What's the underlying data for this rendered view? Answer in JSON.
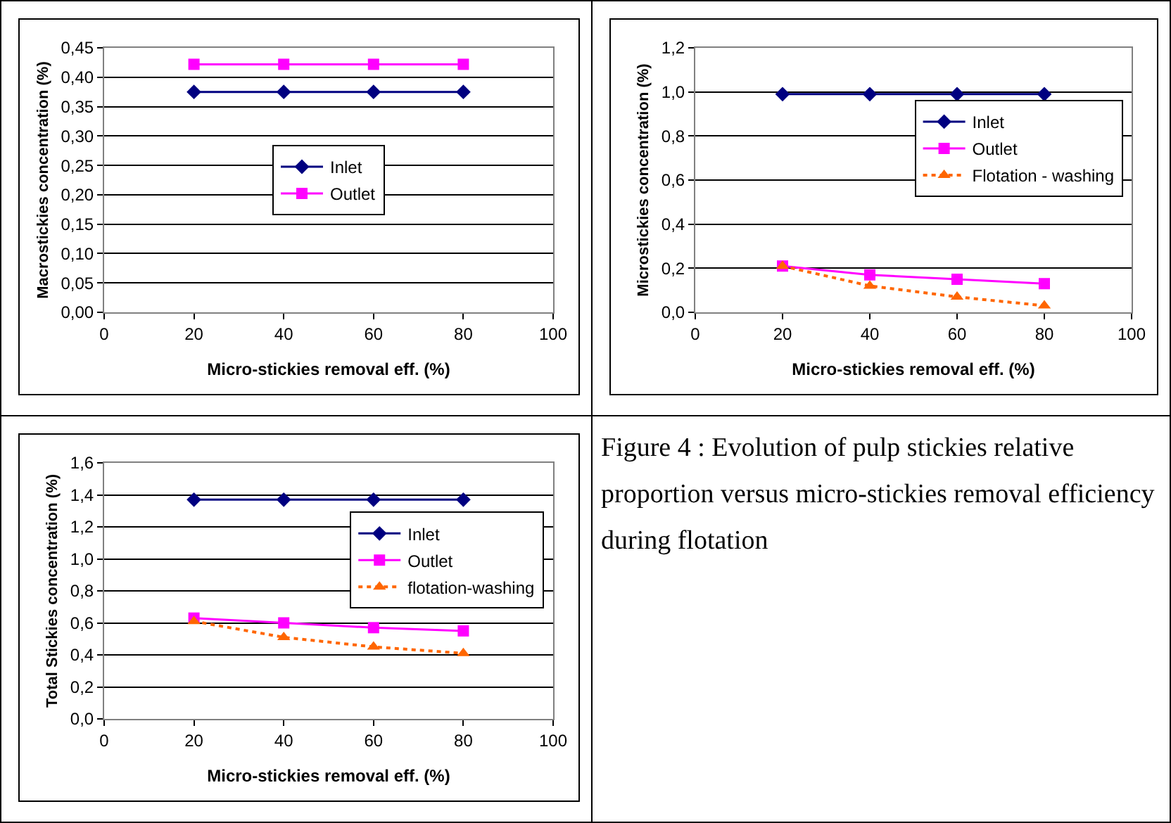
{
  "chart_data": [
    {
      "type": "line",
      "xlabel": "Micro-stickies removal eff. (%)",
      "ylabel": "Macrostickies concentration (%)",
      "x": [
        20,
        40,
        60,
        80
      ],
      "xlim": [
        0,
        100
      ],
      "xticks": [
        0,
        20,
        40,
        60,
        80,
        100
      ],
      "ylim": [
        0,
        0.45
      ],
      "yticks": [
        {
          "value": 0,
          "label": "0,00"
        },
        {
          "value": 0.05,
          "label": "0,05"
        },
        {
          "value": 0.1,
          "label": "0,10"
        },
        {
          "value": 0.15,
          "label": "0,15"
        },
        {
          "value": 0.2,
          "label": "0,20"
        },
        {
          "value": 0.25,
          "label": "0,25"
        },
        {
          "value": 0.3,
          "label": "0,30"
        },
        {
          "value": 0.35,
          "label": "0,35"
        },
        {
          "value": 0.4,
          "label": "0,40"
        },
        {
          "value": 0.45,
          "label": "0,45"
        }
      ],
      "grid": "y",
      "legend": "center",
      "series": [
        {
          "name": "Inlet",
          "color": "#000080",
          "marker": "diamond",
          "line_style": "solid",
          "values": [
            0.375,
            0.375,
            0.375,
            0.375
          ]
        },
        {
          "name": "Outlet",
          "color": "#ff00ff",
          "marker": "square",
          "line_style": "solid",
          "values": [
            0.422,
            0.422,
            0.422,
            0.422
          ]
        }
      ]
    },
    {
      "type": "line",
      "xlabel": "Micro-stickies removal eff. (%)",
      "ylabel": "Microstickies concentration (%)",
      "x": [
        20,
        40,
        60,
        80
      ],
      "xlim": [
        0,
        100
      ],
      "xticks": [
        0,
        20,
        40,
        60,
        80,
        100
      ],
      "ylim": [
        0,
        1.2
      ],
      "yticks": [
        {
          "value": 0,
          "label": "0,0"
        },
        {
          "value": 0.2,
          "label": "0,2"
        },
        {
          "value": 0.4,
          "label": "0,4"
        },
        {
          "value": 0.6,
          "label": "0,6"
        },
        {
          "value": 0.8,
          "label": "0,8"
        },
        {
          "value": 1,
          "label": "1,0"
        },
        {
          "value": 1.2,
          "label": "1,2"
        }
      ],
      "grid": "y",
      "legend": "right",
      "series": [
        {
          "name": "Inlet",
          "color": "#000080",
          "marker": "diamond",
          "line_style": "solid",
          "values": [
            0.99,
            0.99,
            0.99,
            0.99
          ]
        },
        {
          "name": "Outlet",
          "color": "#ff00ff",
          "marker": "square",
          "line_style": "solid",
          "values": [
            0.21,
            0.17,
            0.15,
            0.13
          ]
        },
        {
          "name": "Flotation - washing",
          "color": "#ff6600",
          "marker": "triangle",
          "line_style": "dotted",
          "values": [
            0.21,
            0.12,
            0.07,
            0.03
          ]
        }
      ]
    },
    {
      "type": "line",
      "xlabel": "Micro-stickies removal eff. (%)",
      "ylabel": "Total Stickies concentration (%)",
      "x": [
        20,
        40,
        60,
        80
      ],
      "xlim": [
        0,
        100
      ],
      "xticks": [
        0,
        20,
        40,
        60,
        80,
        100
      ],
      "ylim": [
        0,
        1.6
      ],
      "yticks": [
        {
          "value": 0,
          "label": "0,0"
        },
        {
          "value": 0.2,
          "label": "0,2"
        },
        {
          "value": 0.4,
          "label": "0,4"
        },
        {
          "value": 0.6,
          "label": "0,6"
        },
        {
          "value": 0.8,
          "label": "0,8"
        },
        {
          "value": 1,
          "label": "1,0"
        },
        {
          "value": 1.2,
          "label": "1,2"
        },
        {
          "value": 1.4,
          "label": "1,4"
        },
        {
          "value": 1.6,
          "label": "1,6"
        }
      ],
      "grid": "y",
      "legend": "right",
      "series": [
        {
          "name": "Inlet",
          "color": "#000080",
          "marker": "diamond",
          "line_style": "solid",
          "values": [
            1.37,
            1.37,
            1.37,
            1.37
          ]
        },
        {
          "name": "Outlet",
          "color": "#ff00ff",
          "marker": "square",
          "line_style": "solid",
          "values": [
            0.63,
            0.6,
            0.57,
            0.55
          ]
        },
        {
          "name": "flotation-washing",
          "color": "#ff6600",
          "marker": "triangle",
          "line_style": "dotted",
          "values": [
            0.61,
            0.51,
            0.45,
            0.41
          ]
        }
      ]
    },
    {
      "type": "other",
      "annotations": [
        "Figure 4 : Evolution of pulp stickies relative proportion versus micro-stickies removal efficiency during flotation"
      ]
    }
  ]
}
